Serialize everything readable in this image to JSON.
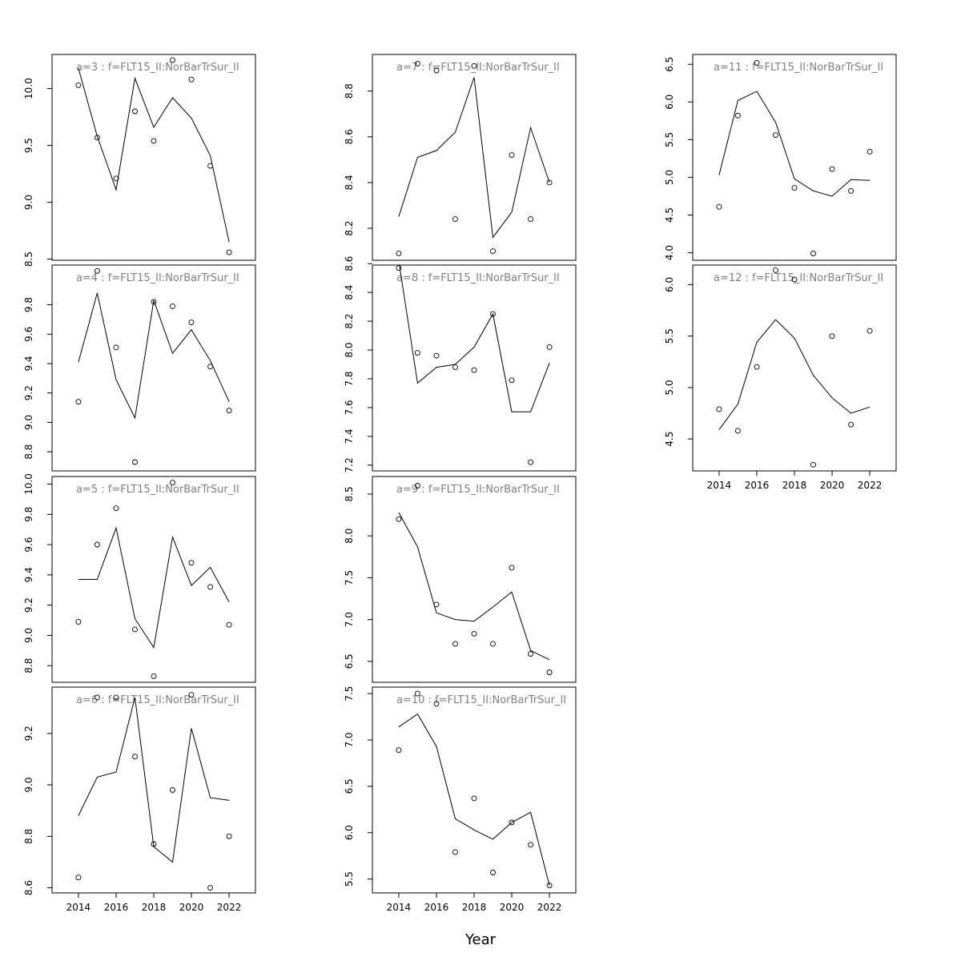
{
  "figure": {
    "xlabel": "Year"
  },
  "chart_data": {
    "type": "line",
    "xlabel": "Year",
    "x_ticks": [
      2014,
      2016,
      2018,
      2020,
      2022
    ],
    "xlim": [
      2012.6,
      2023.4
    ],
    "line_series_name": "fitted",
    "point_series_name": "observed",
    "panels": [
      {
        "label": "a=3  :  f=FLT15_II:NorBarTrSur_II",
        "ylim": [
          8.49,
          10.3
        ],
        "yticks": [
          8.5,
          9.0,
          9.5,
          10.0
        ],
        "ytick_labels": [
          "8.5",
          "9.0",
          "9.5",
          "10.0"
        ],
        "x": [
          2014,
          2015,
          2016,
          2017,
          2018,
          2019,
          2020,
          2021,
          2022
        ],
        "fitted": [
          10.18,
          9.58,
          9.11,
          10.09,
          9.66,
          9.92,
          9.74,
          9.41,
          8.65
        ],
        "observed": [
          10.03,
          9.57,
          9.21,
          9.8,
          9.54,
          10.25,
          10.08,
          9.32,
          8.56
        ]
      },
      {
        "label": "a=4  :  f=FLT15_II:NorBarTrSur_II",
        "ylim": [
          8.67,
          10.07
        ],
        "yticks": [
          8.8,
          9.0,
          9.2,
          9.4,
          9.6,
          9.8
        ],
        "ytick_labels": [
          "8.8",
          "9.0",
          "9.2",
          "9.4",
          "9.6",
          "9.8"
        ],
        "x": [
          2014,
          2015,
          2016,
          2017,
          2018,
          2019,
          2020,
          2021,
          2022
        ],
        "fitted": [
          9.41,
          9.88,
          9.29,
          9.03,
          9.83,
          9.47,
          9.63,
          9.42,
          9.14
        ],
        "observed": [
          9.14,
          10.03,
          9.51,
          8.73,
          9.82,
          9.79,
          9.68,
          9.38,
          9.08
        ]
      },
      {
        "label": "a=5  :  f=FLT15_II:NorBarTrSur_II",
        "ylim": [
          8.69,
          10.05
        ],
        "yticks": [
          8.8,
          9.0,
          9.2,
          9.4,
          9.6,
          9.8,
          10.0
        ],
        "ytick_labels": [
          "8.8",
          "9.0",
          "9.2",
          "9.4",
          "9.6",
          "9.8",
          "10.0"
        ],
        "x": [
          2014,
          2015,
          2016,
          2017,
          2018,
          2019,
          2020,
          2021,
          2022
        ],
        "fitted": [
          9.37,
          9.37,
          9.71,
          9.11,
          8.92,
          9.65,
          9.33,
          9.45,
          9.22
        ],
        "observed": [
          9.09,
          9.6,
          9.84,
          9.04,
          8.73,
          10.01,
          9.48,
          9.32,
          9.07
        ]
      },
      {
        "label": "a=6  :  f=FLT15_II:NorBarTrSur_II",
        "ylim": [
          8.58,
          9.38
        ],
        "yticks": [
          8.6,
          8.8,
          9.0,
          9.2
        ],
        "ytick_labels": [
          "8.6",
          "8.8",
          "9.0",
          "9.2"
        ],
        "x": [
          2014,
          2015,
          2016,
          2017,
          2018,
          2019,
          2020,
          2021,
          2022
        ],
        "fitted": [
          8.88,
          9.03,
          9.05,
          9.34,
          8.76,
          8.7,
          9.22,
          8.95,
          8.94
        ],
        "observed": [
          8.64,
          9.34,
          9.34,
          9.11,
          8.77,
          8.98,
          9.35,
          8.6,
          8.8
        ]
      },
      {
        "label": "a=7  :  f=FLT15_II:NorBarTrSur_II",
        "ylim": [
          8.06,
          8.96
        ],
        "yticks": [
          8.2,
          8.4,
          8.6,
          8.8
        ],
        "ytick_labels": [
          "8.2",
          "8.4",
          "8.6",
          "8.8"
        ],
        "x": [
          2014,
          2015,
          2016,
          2017,
          2018,
          2019,
          2020,
          2021,
          2022
        ],
        "fitted": [
          8.25,
          8.51,
          8.54,
          8.62,
          8.86,
          8.16,
          8.27,
          8.64,
          8.4
        ],
        "observed": [
          8.09,
          8.92,
          8.89,
          8.24,
          8.91,
          8.1,
          8.52,
          8.24,
          8.4
        ]
      },
      {
        "label": "a=8  :  f=FLT15_II:NorBarTrSur_II",
        "ylim": [
          7.16,
          8.59
        ],
        "yticks": [
          7.2,
          7.4,
          7.6,
          7.8,
          8.0,
          8.2,
          8.4,
          8.6
        ],
        "ytick_labels": [
          "7.2",
          "7.4",
          "7.6",
          "7.8",
          "8.0",
          "8.2",
          "8.4",
          "8.6"
        ],
        "x": [
          2014,
          2015,
          2016,
          2017,
          2018,
          2019,
          2020,
          2021,
          2022
        ],
        "fitted": [
          8.62,
          7.77,
          7.88,
          7.9,
          8.02,
          8.25,
          7.57,
          7.57,
          7.91
        ],
        "observed": [
          8.57,
          7.98,
          7.96,
          7.88,
          7.86,
          8.25,
          7.79,
          7.22,
          8.02
        ]
      },
      {
        "label": "a=9  :  f=FLT15_II:NorBarTrSur_II",
        "ylim": [
          6.25,
          8.71
        ],
        "yticks": [
          6.5,
          7.0,
          7.5,
          8.0,
          8.5
        ],
        "ytick_labels": [
          "6.5",
          "7.0",
          "7.5",
          "8.0",
          "8.5"
        ],
        "x": [
          2014,
          2015,
          2016,
          2017,
          2018,
          2019,
          2020,
          2021,
          2022
        ],
        "fitted": [
          8.28,
          7.87,
          7.08,
          7.0,
          6.98,
          7.15,
          7.33,
          6.63,
          6.52
        ],
        "observed": [
          8.2,
          8.6,
          7.18,
          6.71,
          6.83,
          6.71,
          7.62,
          6.59,
          6.37
        ]
      },
      {
        "label": "a=10  :  f=FLT15_II:NorBarTrSur_II",
        "ylim": [
          5.35,
          7.57
        ],
        "yticks": [
          5.5,
          6.0,
          6.5,
          7.0,
          7.5
        ],
        "ytick_labels": [
          "5.5",
          "6.0",
          "6.5",
          "7.0",
          "7.5"
        ],
        "x": [
          2014,
          2015,
          2016,
          2017,
          2018,
          2019,
          2020,
          2021,
          2022
        ],
        "fitted": [
          7.14,
          7.28,
          6.93,
          6.15,
          6.03,
          5.93,
          6.11,
          6.22,
          5.43
        ],
        "observed": [
          6.89,
          7.5,
          7.39,
          5.79,
          6.37,
          5.57,
          6.11,
          5.87,
          5.43
        ]
      },
      {
        "label": "a=11  :  f=FLT15_II:NorBarTrSur_II",
        "ylim": [
          3.9,
          6.63
        ],
        "yticks": [
          4.0,
          4.5,
          5.0,
          5.5,
          6.0,
          6.5
        ],
        "ytick_labels": [
          "4.0",
          "4.5",
          "5.0",
          "5.5",
          "6.0",
          "6.5"
        ],
        "x": [
          2014,
          2015,
          2016,
          2017,
          2018,
          2019,
          2020,
          2021,
          2022
        ],
        "fitted": [
          5.03,
          6.02,
          6.14,
          5.73,
          4.98,
          4.82,
          4.75,
          4.97,
          4.96
        ],
        "observed": [
          4.61,
          5.82,
          6.52,
          5.56,
          4.86,
          3.99,
          5.11,
          4.82,
          5.34
        ]
      },
      {
        "label": "a=12  :  f=FLT15_II:NorBarTrSur_II",
        "ylim": [
          4.19,
          6.19
        ],
        "yticks": [
          4.5,
          5.0,
          5.5,
          6.0
        ],
        "ytick_labels": [
          "4.5",
          "5.0",
          "5.5",
          "6.0"
        ],
        "x": [
          2014,
          2015,
          2016,
          2017,
          2018,
          2019,
          2020,
          2021,
          2022
        ],
        "fitted": [
          4.59,
          4.84,
          5.44,
          5.66,
          5.48,
          5.12,
          4.9,
          4.75,
          4.81
        ],
        "observed": [
          4.79,
          4.58,
          5.2,
          6.14,
          6.05,
          4.25,
          5.5,
          4.64,
          5.55
        ]
      }
    ]
  }
}
